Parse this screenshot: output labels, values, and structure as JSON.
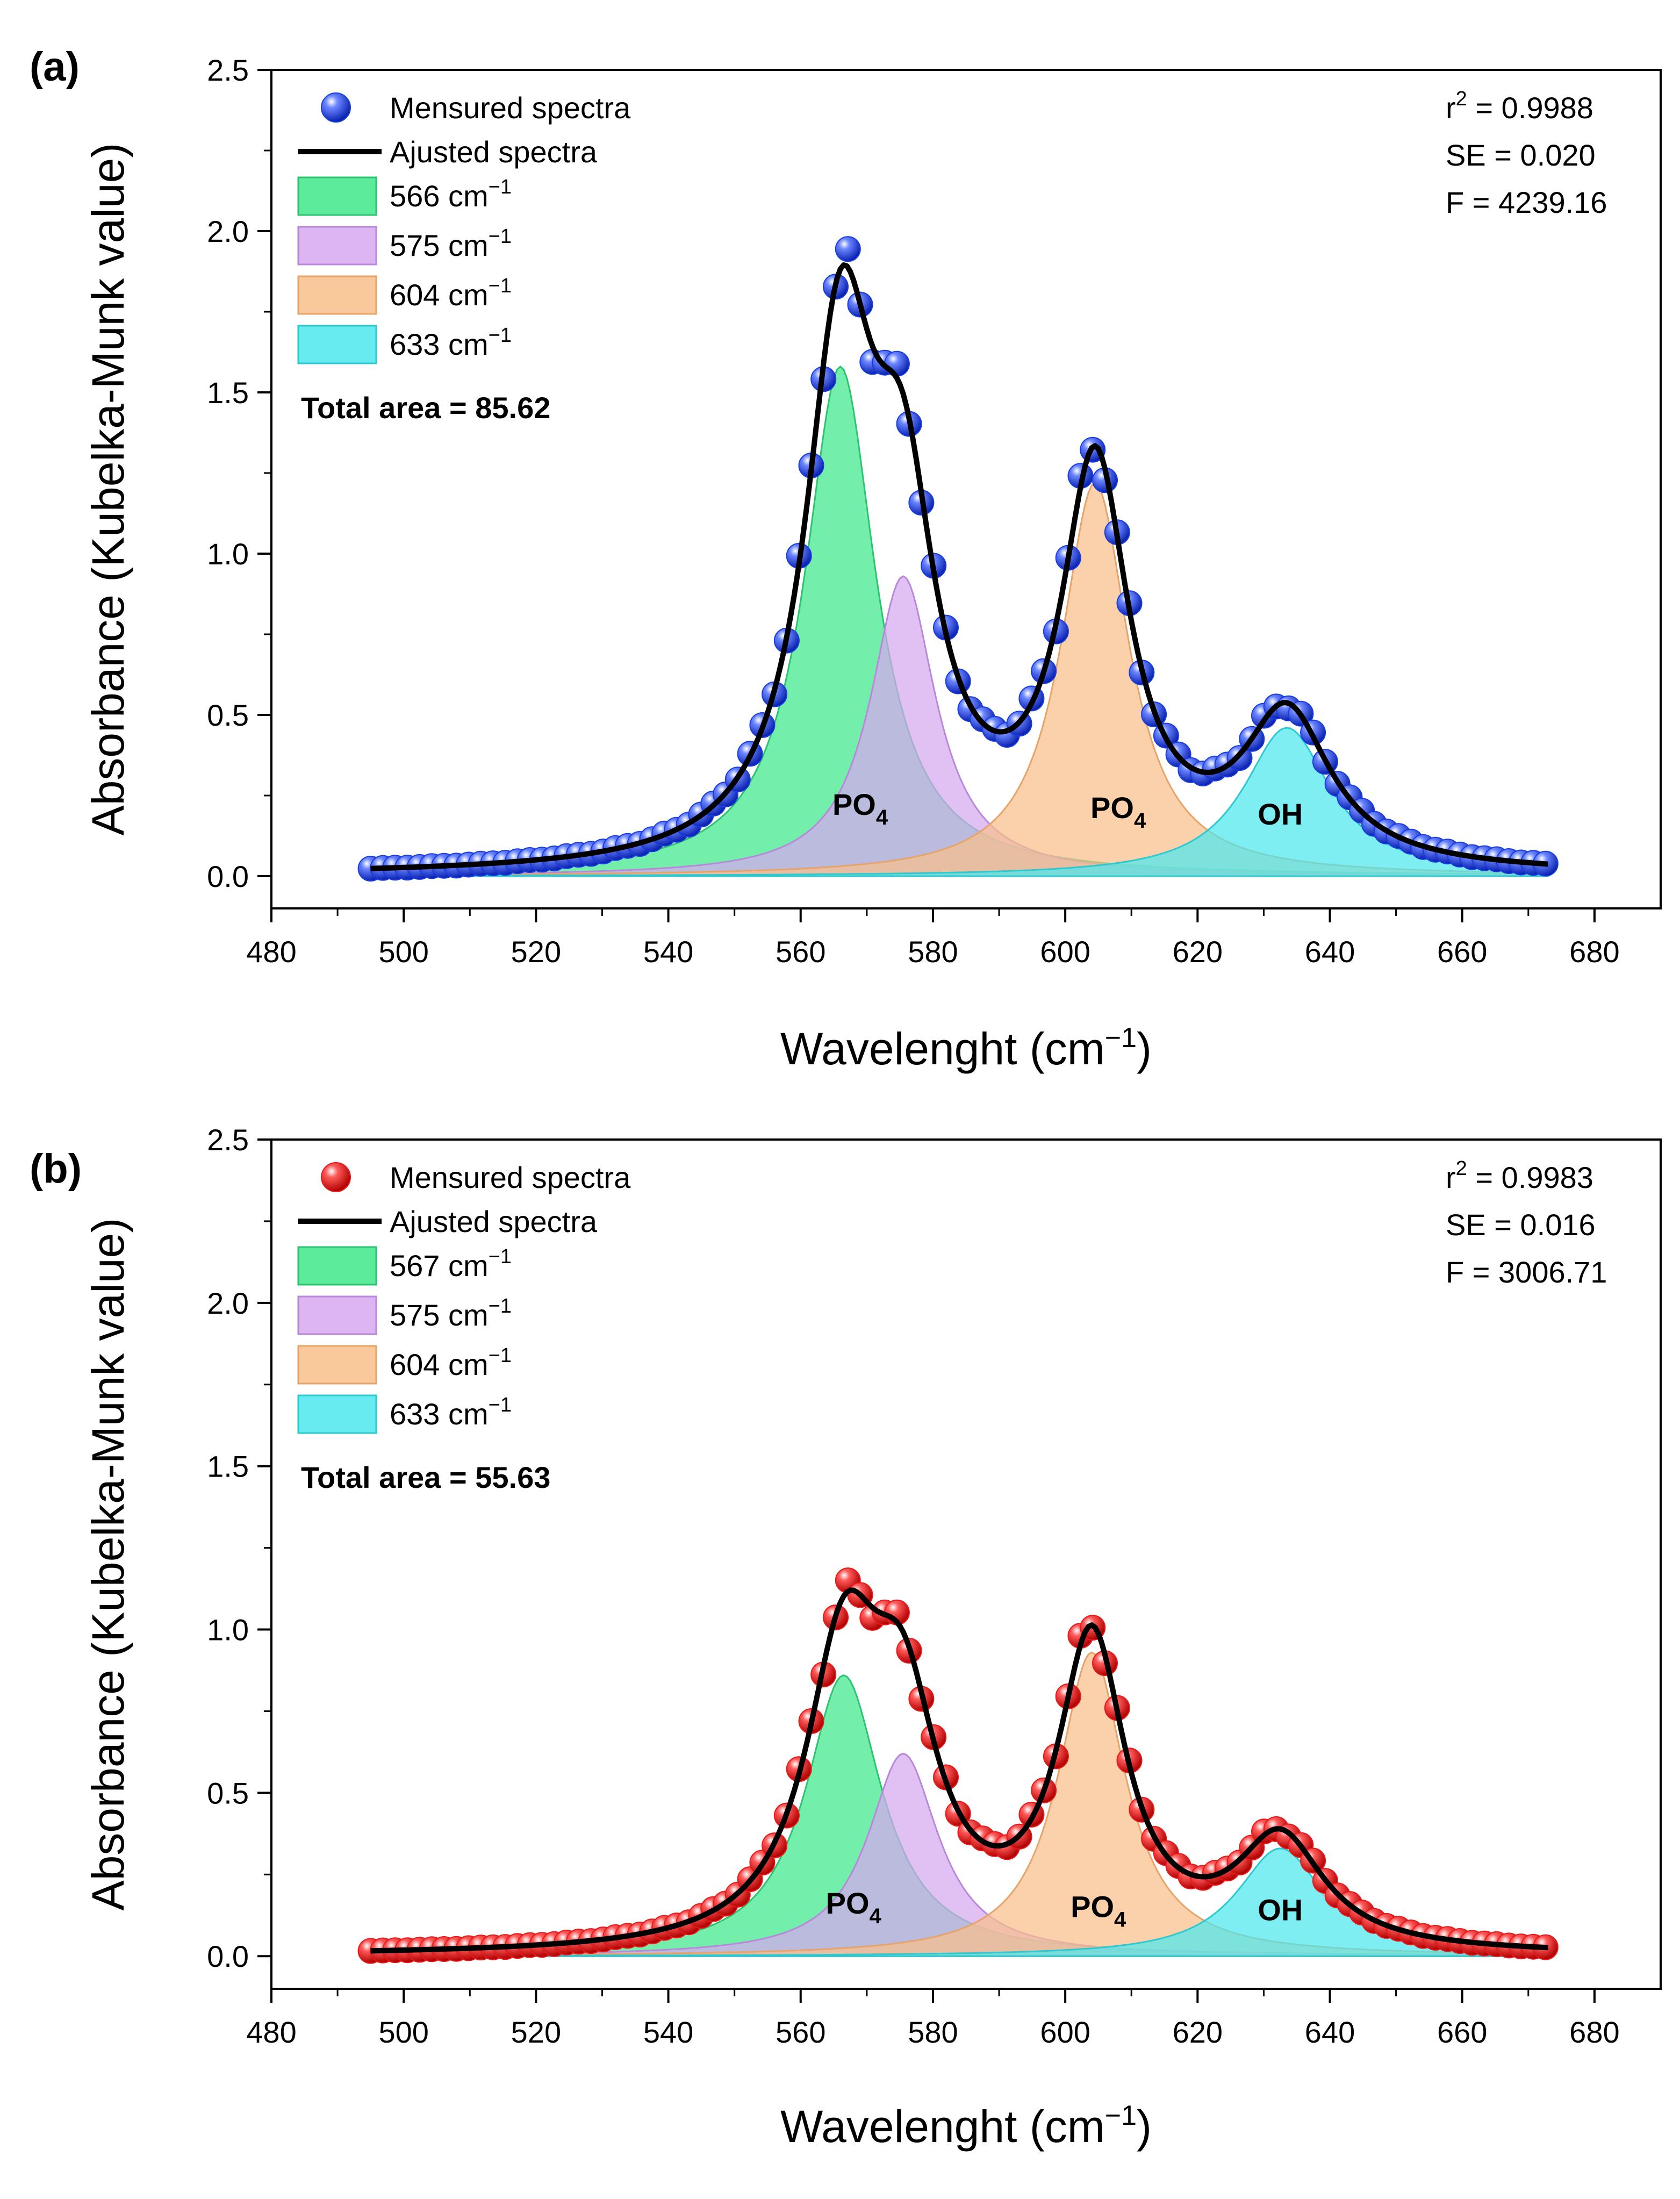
{
  "chart_data": [
    {
      "type": "area",
      "panel_label": "(a)",
      "xlabel": "Wavelenght (cm⁻¹)",
      "xlabel_main": "Wavelenght (cm",
      "xlabel_sup": "−1",
      "xlabel_close": ")",
      "ylabel": "Absorbance (Kubelka-Munk value)",
      "xlim": [
        480,
        690
      ],
      "ylim": [
        -0.1,
        2.5
      ],
      "xticks": [
        "480",
        "500",
        "520",
        "540",
        "560",
        "580",
        "600",
        "620",
        "640",
        "660",
        "680"
      ],
      "yticks": [
        "0.0",
        "0.5",
        "1.0",
        "1.5",
        "2.0",
        "2.5"
      ],
      "marker_color": "#1a3de0",
      "stats": [
        {
          "main": "r",
          "sup": "2",
          "rest": " = 0.9988"
        },
        {
          "main": "SE = 0.020",
          "sup": "",
          "rest": ""
        },
        {
          "main": "F = 4239.16",
          "sup": "",
          "rest": ""
        }
      ],
      "total_area": "Total area = 85.62",
      "legend": {
        "measured": "Mensured spectra",
        "adjusted": "Ajusted spectra",
        "bands": [
          {
            "label": "566 cm",
            "sup": "−1",
            "color": "#3ee88a"
          },
          {
            "label": "575 cm",
            "sup": "−1",
            "color": "#d6a8f0"
          },
          {
            "label": "604 cm",
            "sup": "−1",
            "color": "#f8bf8a"
          },
          {
            "label": "633 cm",
            "sup": "−1",
            "color": "#4ce8ee"
          }
        ]
      },
      "peaks": [
        {
          "center": 566,
          "height": 1.58,
          "width": 6.5,
          "color": "#3ee88a",
          "stroke": "#2cc471"
        },
        {
          "center": 575.5,
          "height": 0.93,
          "width": 6.0,
          "color": "#d6a8f0",
          "stroke": "#b888da"
        },
        {
          "center": 604.5,
          "height": 1.22,
          "width": 6.2,
          "color": "#f8bf8a",
          "stroke": "#e6a36a"
        },
        {
          "center": 633.5,
          "height": 0.46,
          "width": 8.0,
          "color": "#4ce8ee",
          "stroke": "#2ccad0"
        }
      ],
      "annotations": [
        {
          "text": "PO",
          "sub": "4",
          "x": 569,
          "y": 0.19
        },
        {
          "text": "PO",
          "sub": "4",
          "x": 608,
          "y": 0.18
        },
        {
          "text": "OH",
          "x": 632.5,
          "y": 0.16
        }
      ],
      "x_range": [
        495,
        673
      ]
    },
    {
      "type": "area",
      "panel_label": "(b)",
      "xlabel": "Wavelenght (cm⁻¹)",
      "xlabel_main": "Wavelenght (cm",
      "xlabel_sup": "−1",
      "xlabel_close": ")",
      "ylabel": "Absorbance (Kubelka-Munk value)",
      "xlim": [
        480,
        690
      ],
      "ylim": [
        -0.1,
        2.5
      ],
      "xticks": [
        "480",
        "500",
        "520",
        "540",
        "560",
        "580",
        "600",
        "620",
        "640",
        "660",
        "680"
      ],
      "yticks": [
        "0.0",
        "0.5",
        "1.0",
        "1.5",
        "2.0",
        "2.5"
      ],
      "marker_color": "#e81a1a",
      "stats": [
        {
          "main": "r",
          "sup": "2",
          "rest": " = 0.9983"
        },
        {
          "main": "SE = 0.016",
          "sup": "",
          "rest": ""
        },
        {
          "main": "F = 3006.71",
          "sup": "",
          "rest": ""
        }
      ],
      "total_area": "Total area = 55.63",
      "legend": {
        "measured": "Mensured spectra",
        "adjusted": "Ajusted spectra",
        "bands": [
          {
            "label": "567 cm",
            "sup": "−1",
            "color": "#3ee88a"
          },
          {
            "label": "575 cm",
            "sup": "−1",
            "color": "#d6a8f0"
          },
          {
            "label": "604 cm",
            "sup": "−1",
            "color": "#f8bf8a"
          },
          {
            "label": "633 cm",
            "sup": "−1",
            "color": "#4ce8ee"
          }
        ]
      },
      "peaks": [
        {
          "center": 566.5,
          "height": 0.86,
          "width": 7.0,
          "color": "#3ee88a",
          "stroke": "#2cc471"
        },
        {
          "center": 575.5,
          "height": 0.62,
          "width": 6.5,
          "color": "#d6a8f0",
          "stroke": "#b888da"
        },
        {
          "center": 604,
          "height": 0.93,
          "width": 6.2,
          "color": "#f8bf8a",
          "stroke": "#e6a36a"
        },
        {
          "center": 632.5,
          "height": 0.33,
          "width": 8.0,
          "color": "#4ce8ee",
          "stroke": "#2ccad0"
        }
      ],
      "annotations": [
        {
          "text": "PO",
          "sub": "4",
          "x": 568,
          "y": 0.13
        },
        {
          "text": "PO",
          "sub": "4",
          "x": 605,
          "y": 0.12
        },
        {
          "text": "OH",
          "x": 632.5,
          "y": 0.11
        }
      ],
      "x_range": [
        495,
        673
      ]
    }
  ]
}
